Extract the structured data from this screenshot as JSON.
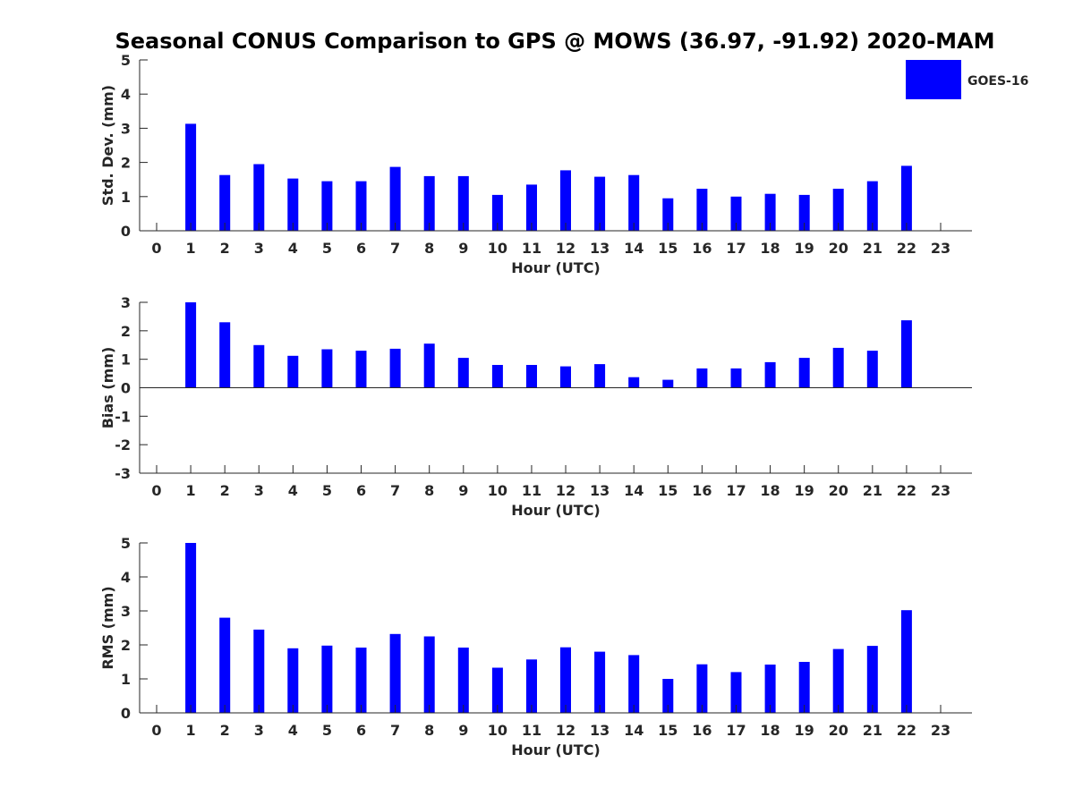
{
  "title": "Seasonal CONUS Comparison to GPS @ MOWS (36.97, -91.92) 2020-MAM",
  "legend": {
    "label": "GOES-16",
    "color": "#0000ff",
    "position": "top-right"
  },
  "chart_data": [
    {
      "type": "bar",
      "panel": "std-dev",
      "ylabel": "Std. Dev. (mm)",
      "xlabel": "Hour (UTC)",
      "ylim": [
        0,
        5
      ],
      "yticks": [
        0,
        1,
        2,
        3,
        4,
        5
      ],
      "grid": false,
      "categories": [
        0,
        1,
        2,
        3,
        4,
        5,
        6,
        7,
        8,
        9,
        10,
        11,
        12,
        13,
        14,
        15,
        16,
        17,
        18,
        19,
        20,
        21,
        22,
        23
      ],
      "series": [
        {
          "name": "GOES-16",
          "values": [
            null,
            3.13,
            1.63,
            1.95,
            1.53,
            1.45,
            1.45,
            1.87,
            1.6,
            1.6,
            1.05,
            1.35,
            1.77,
            1.58,
            1.63,
            0.95,
            1.23,
            1.0,
            1.08,
            1.05,
            1.23,
            1.45,
            1.9,
            null
          ]
        }
      ]
    },
    {
      "type": "bar",
      "panel": "bias",
      "ylabel": "Bias (mm)",
      "xlabel": "Hour (UTC)",
      "ylim": [
        -3,
        3
      ],
      "yticks": [
        -3,
        -2,
        -1,
        0,
        1,
        2,
        3
      ],
      "grid": false,
      "zero_line": true,
      "categories": [
        0,
        1,
        2,
        3,
        4,
        5,
        6,
        7,
        8,
        9,
        10,
        11,
        12,
        13,
        14,
        15,
        16,
        17,
        18,
        19,
        20,
        21,
        22,
        23
      ],
      "series": [
        {
          "name": "GOES-16",
          "values": [
            null,
            3.0,
            2.3,
            1.5,
            1.12,
            1.35,
            1.3,
            1.37,
            1.55,
            1.05,
            0.8,
            0.8,
            0.75,
            0.83,
            0.37,
            0.28,
            0.68,
            0.68,
            0.9,
            1.05,
            1.4,
            1.3,
            2.37,
            null
          ]
        }
      ]
    },
    {
      "type": "bar",
      "panel": "rms",
      "ylabel": "RMS (mm)",
      "xlabel": "Hour (UTC)",
      "ylim": [
        0,
        5
      ],
      "yticks": [
        0,
        1,
        2,
        3,
        4,
        5
      ],
      "grid": false,
      "categories": [
        0,
        1,
        2,
        3,
        4,
        5,
        6,
        7,
        8,
        9,
        10,
        11,
        12,
        13,
        14,
        15,
        16,
        17,
        18,
        19,
        20,
        21,
        22,
        23
      ],
      "series": [
        {
          "name": "GOES-16",
          "values": [
            null,
            5.0,
            2.8,
            2.45,
            1.9,
            1.98,
            1.92,
            2.32,
            2.25,
            1.92,
            1.33,
            1.57,
            1.93,
            1.8,
            1.7,
            1.0,
            1.43,
            1.2,
            1.42,
            1.5,
            1.88,
            1.97,
            3.02,
            null
          ]
        }
      ]
    }
  ]
}
